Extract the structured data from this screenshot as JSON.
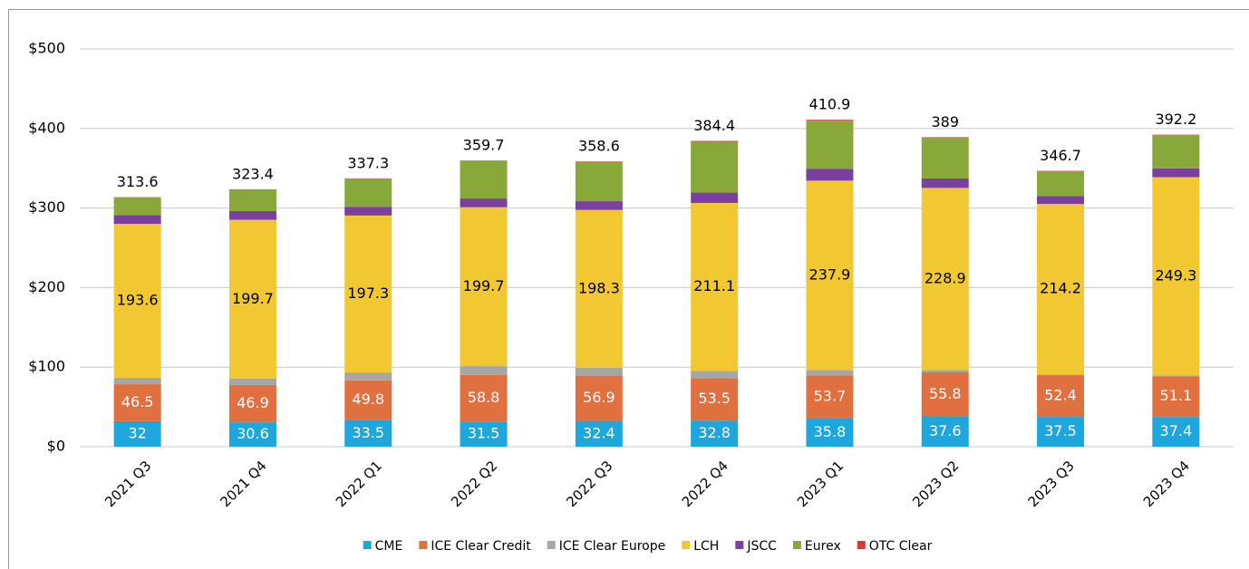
{
  "chart_data": {
    "type": "stacked_bar",
    "categories": [
      "2021 Q3",
      "2021 Q4",
      "2022 Q1",
      "2022 Q2",
      "2022 Q3",
      "2022 Q4",
      "2023 Q1",
      "2023 Q2",
      "2023 Q3",
      "2023 Q4"
    ],
    "series": [
      {
        "name": "CME",
        "color": "#1ea7dc",
        "show_labels": true,
        "label_color": "#ffffff",
        "values": [
          32.0,
          30.6,
          33.5,
          31.5,
          32.4,
          32.8,
          35.8,
          37.6,
          37.5,
          37.4
        ]
      },
      {
        "name": "ICE Clear Credit",
        "color": "#e07040",
        "show_labels": true,
        "label_color": "#ffffff",
        "values": [
          46.5,
          46.9,
          49.8,
          58.8,
          56.9,
          53.5,
          53.7,
          55.8,
          52.4,
          51.1
        ]
      },
      {
        "name": "ICE Clear Europe",
        "color": "#a6a6a6",
        "show_labels": false,
        "values": [
          8,
          8,
          10,
          11,
          10,
          9,
          7,
          3,
          1,
          1
        ]
      },
      {
        "name": "LCH",
        "color": "#f2c832",
        "show_labels": true,
        "label_color": "#000000",
        "values": [
          193.6,
          199.7,
          197.3,
          199.7,
          198.3,
          211.1,
          237.9,
          228.9,
          214.2,
          249.3
        ]
      },
      {
        "name": "JSCC",
        "color": "#7b3fa0",
        "show_labels": false,
        "values": [
          11,
          11,
          11,
          11,
          11,
          13,
          15,
          12,
          10,
          11
        ]
      },
      {
        "name": "Eurex",
        "color": "#88a83a",
        "show_labels": false,
        "values": [
          22,
          26.7,
          35.2,
          47.2,
          49.5,
          64,
          60.5,
          50.7,
          31.1,
          41.9
        ]
      },
      {
        "name": "OTC Clear",
        "color": "#d9383a",
        "show_labels": false,
        "values": [
          0.5,
          0.5,
          0.5,
          0.5,
          0.5,
          1.0,
          1.0,
          1.0,
          0.5,
          0.5
        ]
      }
    ],
    "totals": [
      313.6,
      323.4,
      337.3,
      359.7,
      358.6,
      384.4,
      410.9,
      389.0,
      346.7,
      392.2
    ],
    "ylim": [
      0,
      500
    ],
    "yticks": [
      {
        "value": 0,
        "label": "$0"
      },
      {
        "value": 100,
        "label": "$100"
      },
      {
        "value": 200,
        "label": "$200"
      },
      {
        "value": 300,
        "label": "$300"
      },
      {
        "value": 400,
        "label": "$400"
      },
      {
        "value": 500,
        "label": "$500"
      }
    ],
    "grid": true,
    "legend": "bottom"
  }
}
